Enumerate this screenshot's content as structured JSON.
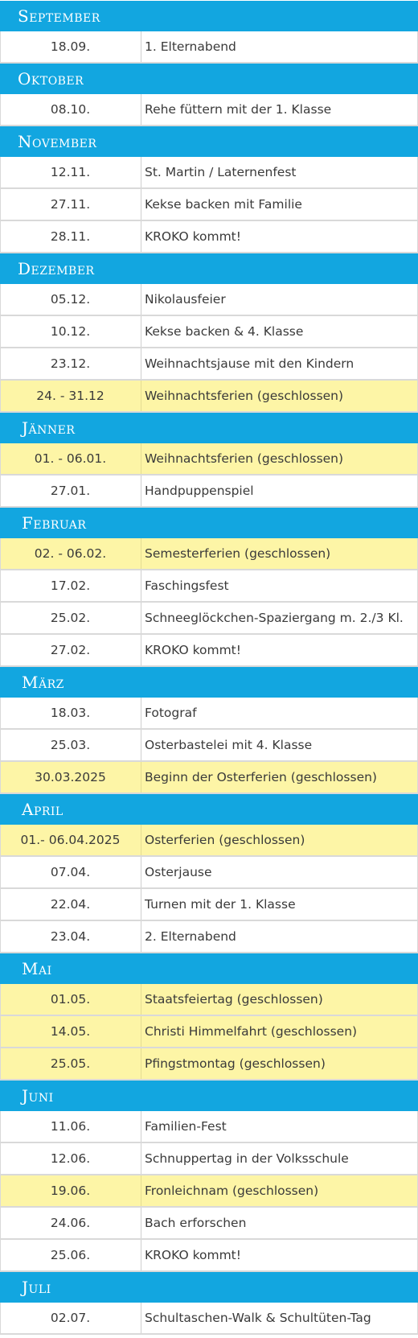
{
  "calendar": {
    "colors": {
      "month_header": "#12a6e0",
      "highlight": "#fdf5a6",
      "row": "#ffffff"
    },
    "months": [
      {
        "name": "September",
        "events": [
          {
            "date": "18.09.",
            "text": "1. Elternabend",
            "highlight": false
          }
        ]
      },
      {
        "name": "Oktober",
        "events": [
          {
            "date": "08.10.",
            "text": "Rehe füttern mit der 1. Klasse",
            "highlight": false
          }
        ]
      },
      {
        "name": "November",
        "events": [
          {
            "date": "12.11.",
            "text": "St. Martin / Laternenfest",
            "highlight": false
          },
          {
            "date": "27.11.",
            "text": "Kekse backen mit Familie",
            "highlight": false
          },
          {
            "date": "28.11.",
            "text": "KROKO kommt!",
            "highlight": false
          }
        ]
      },
      {
        "name": "Dezember",
        "events": [
          {
            "date": "05.12.",
            "text": "Nikolausfeier",
            "highlight": false
          },
          {
            "date": "10.12.",
            "text": "Kekse backen & 4. Klasse",
            "highlight": false
          },
          {
            "date": "23.12.",
            "text": "Weihnachtsjause mit den Kindern",
            "highlight": false
          },
          {
            "date": "24. - 31.12",
            "text": "Weihnachtsferien (geschlossen)",
            "highlight": true
          }
        ]
      },
      {
        "name": "Jänner",
        "events": [
          {
            "date": "01. - 06.01.",
            "text": "Weihnachtsferien (geschlossen)",
            "highlight": true
          },
          {
            "date": "27.01.",
            "text": "Handpuppenspiel",
            "highlight": false
          }
        ]
      },
      {
        "name": "Februar",
        "events": [
          {
            "date": "02. - 06.02.",
            "text": "Semesterferien (geschlossen)",
            "highlight": true
          },
          {
            "date": "17.02.",
            "text": "Faschingsfest",
            "highlight": false
          },
          {
            "date": "25.02.",
            "text": "Schneeglöckchen-Spaziergang m. 2./3 Kl.",
            "highlight": false
          },
          {
            "date": "27.02.",
            "text": "KROKO kommt!",
            "highlight": false
          }
        ]
      },
      {
        "name": "März",
        "events": [
          {
            "date": "18.03.",
            "text": "Fotograf",
            "highlight": false
          },
          {
            "date": "25.03.",
            "text": "Osterbastelei mit 4. Klasse",
            "highlight": false
          },
          {
            "date": "30.03.2025",
            "text": "Beginn der Osterferien (geschlossen)",
            "highlight": true
          }
        ]
      },
      {
        "name": "April",
        "events": [
          {
            "date": "01.- 06.04.2025",
            "text": "Osterferien (geschlossen)",
            "highlight": true
          },
          {
            "date": "07.04.",
            "text": "Osterjause",
            "highlight": false
          },
          {
            "date": "22.04.",
            "text": "Turnen mit der 1. Klasse",
            "highlight": false
          },
          {
            "date": "23.04.",
            "text": "2. Elternabend",
            "highlight": false
          }
        ]
      },
      {
        "name": "Mai",
        "events": [
          {
            "date": "01.05.",
            "text": "Staatsfeiertag (geschlossen)",
            "highlight": true
          },
          {
            "date": "14.05.",
            "text": "Christi Himmelfahrt (geschlossen)",
            "highlight": true
          },
          {
            "date": "25.05.",
            "text": "Pfingstmontag (geschlossen)",
            "highlight": true
          }
        ]
      },
      {
        "name": "Juni",
        "events": [
          {
            "date": "11.06.",
            "text": "Familien-Fest",
            "highlight": false
          },
          {
            "date": "12.06.",
            "text": "Schnuppertag in der Volksschule",
            "highlight": false
          },
          {
            "date": "19.06.",
            "text": "Fronleichnam (geschlossen)",
            "highlight": true
          },
          {
            "date": "24.06.",
            "text": "Bach erforschen",
            "highlight": false
          },
          {
            "date": "25.06.",
            "text": "KROKO kommt!",
            "highlight": false
          }
        ]
      },
      {
        "name": "Juli",
        "events": [
          {
            "date": "02.07.",
            "text": "Schultaschen-Walk & Schultüten-Tag",
            "highlight": false
          }
        ]
      }
    ]
  }
}
